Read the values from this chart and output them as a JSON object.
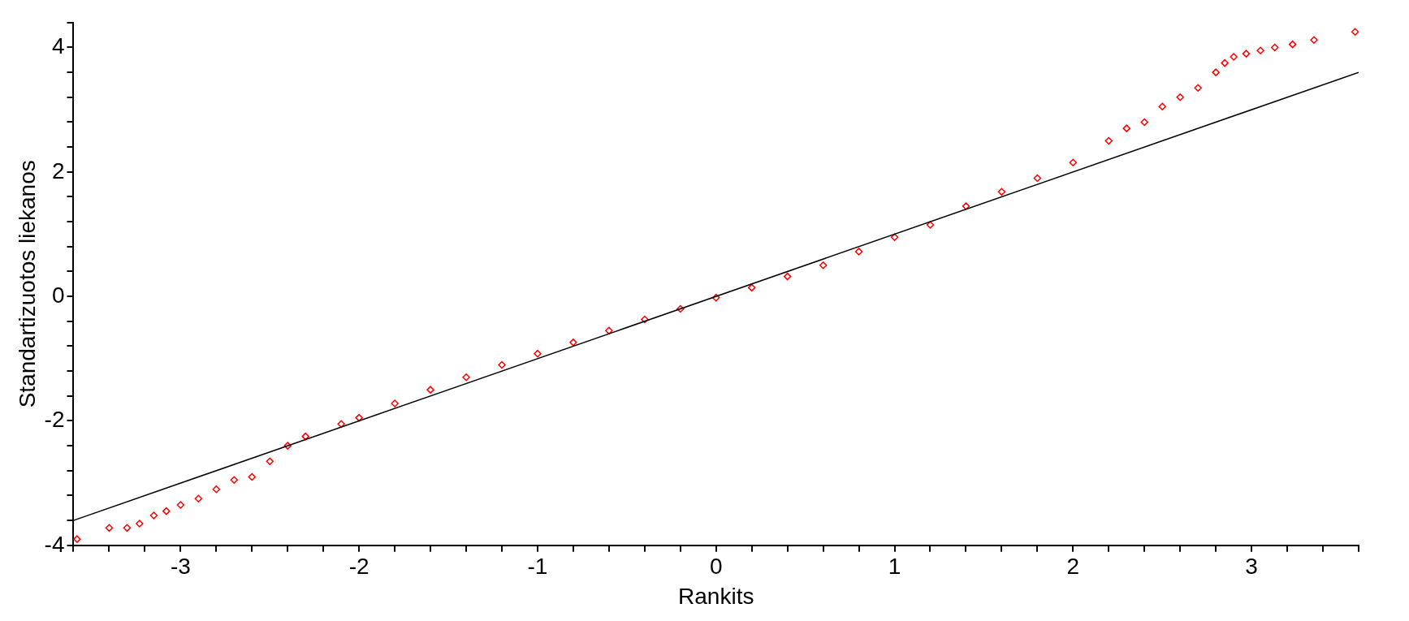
{
  "chart_data": {
    "type": "scatter",
    "xlabel": "Rankits",
    "ylabel": "Standartizuotos liekanos",
    "xlim": [
      -3.6,
      3.6
    ],
    "ylim": [
      -4,
      4.4
    ],
    "grid": false,
    "legend": false,
    "xticks": [
      {
        "value": -3.6,
        "label": null
      },
      {
        "value": -3.4,
        "label": null
      },
      {
        "value": -3.2,
        "label": null
      },
      -3,
      {
        "value": -2.8,
        "label": null
      },
      {
        "value": -2.6,
        "label": null
      },
      {
        "value": -2.4,
        "label": null
      },
      {
        "value": -2.2,
        "label": null
      },
      -2,
      {
        "value": -1.8,
        "label": null
      },
      {
        "value": -1.6,
        "label": null
      },
      {
        "value": -1.4,
        "label": null
      },
      {
        "value": -1.2,
        "label": null
      },
      -1,
      {
        "value": -0.8,
        "label": null
      },
      {
        "value": -0.6,
        "label": null
      },
      {
        "value": -0.4,
        "label": null
      },
      {
        "value": -0.2,
        "label": null
      },
      0,
      {
        "value": 0.2,
        "label": null
      },
      {
        "value": 0.4,
        "label": null
      },
      {
        "value": 0.6,
        "label": null
      },
      {
        "value": 0.8,
        "label": null
      },
      1,
      {
        "value": 1.2,
        "label": null
      },
      {
        "value": 1.4,
        "label": null
      },
      {
        "value": 1.6,
        "label": null
      },
      {
        "value": 1.8,
        "label": null
      },
      2,
      {
        "value": 2.2,
        "label": null
      },
      {
        "value": 2.4,
        "label": null
      },
      {
        "value": 2.6,
        "label": null
      },
      {
        "value": 2.8,
        "label": null
      },
      3,
      {
        "value": 3.2,
        "label": null
      },
      {
        "value": 3.4,
        "label": null
      },
      {
        "value": 3.6,
        "label": null
      }
    ],
    "yticks": [
      -4,
      {
        "value": -3.6,
        "label": null
      },
      {
        "value": -3.2,
        "label": null
      },
      {
        "value": -2.8,
        "label": null
      },
      {
        "value": -2.4,
        "label": null
      },
      -2,
      {
        "value": -1.6,
        "label": null
      },
      {
        "value": -1.2,
        "label": null
      },
      {
        "value": -0.8,
        "label": null
      },
      {
        "value": -0.4,
        "label": null
      },
      0,
      {
        "value": 0.4,
        "label": null
      },
      {
        "value": 0.8,
        "label": null
      },
      {
        "value": 1.2,
        "label": null
      },
      {
        "value": 1.6,
        "label": null
      },
      2,
      {
        "value": 2.4,
        "label": null
      },
      {
        "value": 2.8,
        "label": null
      },
      {
        "value": 3.2,
        "label": null
      },
      {
        "value": 3.6,
        "label": null
      },
      4,
      {
        "value": 4.4,
        "label": null
      }
    ],
    "series": [
      {
        "marker": "diamond",
        "color": "#ff0000",
        "x": [
          -3.58,
          -3.4,
          -3.3,
          -3.23,
          -3.15,
          -3.08,
          -3.0,
          -2.9,
          -2.8,
          -2.7,
          -2.6,
          -2.5,
          -2.4,
          -2.3,
          -2.1,
          -2.0,
          -1.8,
          -1.6,
          -1.4,
          -1.2,
          -1.0,
          -0.8,
          -0.6,
          -0.4,
          -0.2,
          0,
          0.2,
          0.4,
          0.6,
          0.8,
          1.0,
          1.2,
          1.4,
          1.6,
          1.8,
          2.0,
          2.2,
          2.3,
          2.4,
          2.5,
          2.6,
          2.7,
          2.8,
          2.85,
          2.9,
          2.97,
          3.05,
          3.13,
          3.23,
          3.35,
          3.58
        ],
        "values": [
          -3.9,
          -3.72,
          -3.72,
          -3.65,
          -3.52,
          -3.45,
          -3.35,
          -3.25,
          -3.1,
          -2.95,
          -2.9,
          -2.65,
          -2.4,
          -2.25,
          -2.05,
          -1.95,
          -1.72,
          -1.5,
          -1.3,
          -1.1,
          -0.92,
          -0.74,
          -0.55,
          -0.37,
          -0.2,
          -0.02,
          0.14,
          0.32,
          0.5,
          0.72,
          0.95,
          1.15,
          1.45,
          1.68,
          1.9,
          2.15,
          2.5,
          2.7,
          2.8,
          3.05,
          3.2,
          3.35,
          3.6,
          3.75,
          3.85,
          3.9,
          3.95,
          4.0,
          4.05,
          4.12,
          4.25
        ]
      },
      {
        "type": "line",
        "color": "#000000",
        "x": [
          -3.6,
          3.6
        ],
        "values": [
          -3.6,
          3.6
        ]
      }
    ]
  }
}
